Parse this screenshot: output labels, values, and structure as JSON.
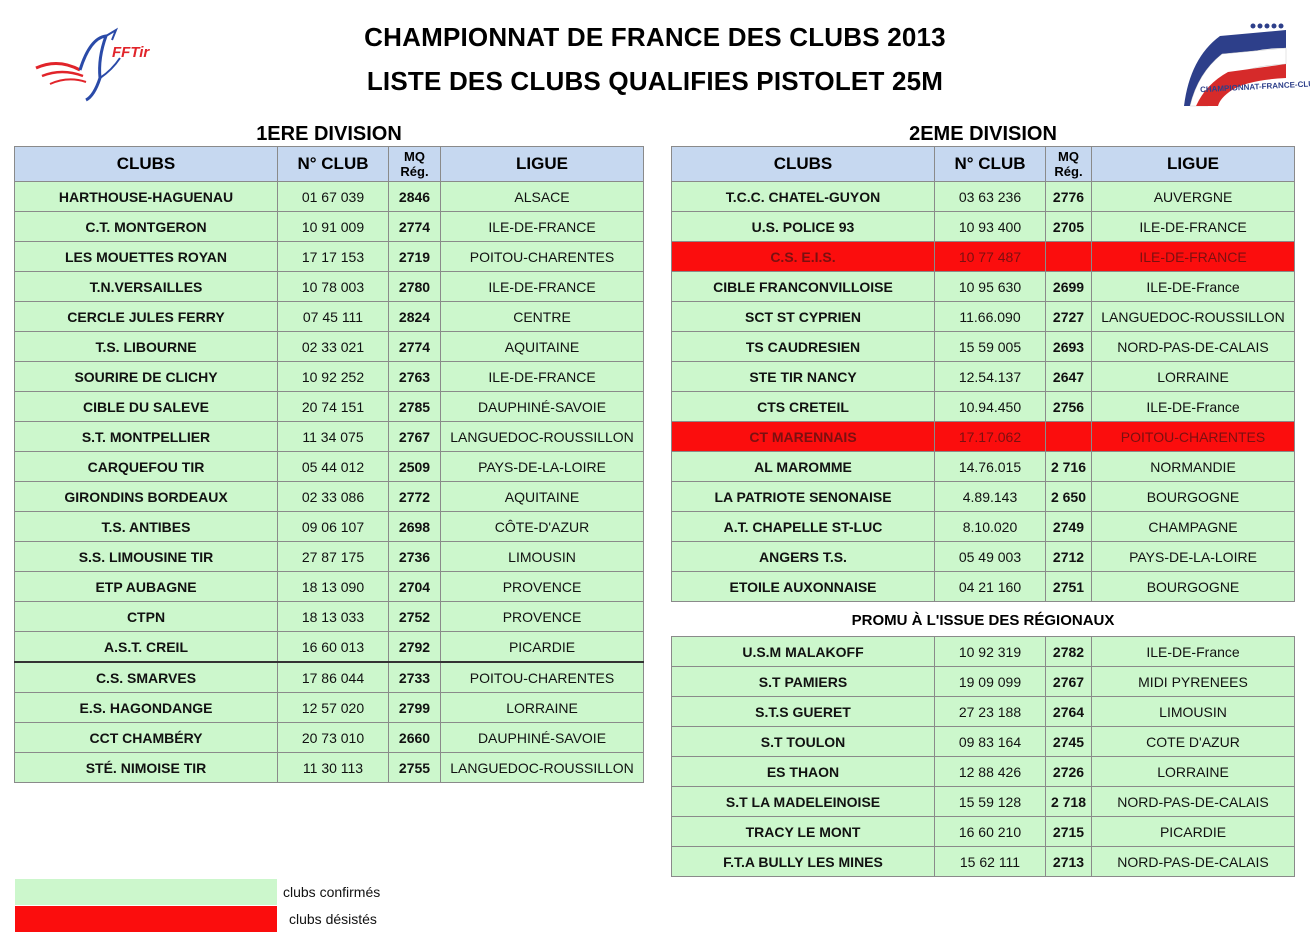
{
  "header": {
    "title_line1": "CHAMPIONNAT DE FRANCE DES CLUBS 2013",
    "title_line2": "LISTE DES CLUBS QUALIFIES PISTOLET 25M",
    "logo_left_text": "FFTir",
    "logo_right_text": "CHAMPIONNAT-FRANCE-CLUBS"
  },
  "columns": {
    "clubs": "CLUBS",
    "num": "N° CLUB",
    "mq_line1": "MQ",
    "mq_line2": "Rég.",
    "ligue": "LIGUE"
  },
  "colors": {
    "confirmed": "#ccf7cc",
    "withdrawn": "#fb0d0d",
    "header": "#c6d8f0"
  },
  "div1": {
    "title": "1ERE DIVISION",
    "rows": [
      {
        "club": "HARTHOUSE-HAGUENAU",
        "num": "01 67 039",
        "mq": "2846",
        "ligue": "ALSACE"
      },
      {
        "club": "C.T. MONTGERON",
        "num": "10 91 009",
        "mq": "2774",
        "ligue": "ILE-DE-FRANCE"
      },
      {
        "club": "LES MOUETTES ROYAN",
        "num": "17 17 153",
        "mq": "2719",
        "ligue": "POITOU-CHARENTES"
      },
      {
        "club": "T.N.VERSAILLES",
        "num": "10 78 003",
        "mq": "2780",
        "ligue": "ILE-DE-FRANCE"
      },
      {
        "club": "CERCLE JULES FERRY",
        "num": "07 45 111",
        "mq": "2824",
        "ligue": "CENTRE"
      },
      {
        "club": "T.S. LIBOURNE",
        "num": "02 33 021",
        "mq": "2774",
        "ligue": "AQUITAINE"
      },
      {
        "club": "SOURIRE DE CLICHY",
        "num": "10 92 252",
        "mq": "2763",
        "ligue": "ILE-DE-FRANCE"
      },
      {
        "club": "CIBLE DU SALEVE",
        "num": "20 74 151",
        "mq": "2785",
        "ligue": "DAUPHINÉ-SAVOIE"
      },
      {
        "club": "S.T. MONTPELLIER",
        "num": "11 34 075",
        "mq": "2767",
        "ligue": "LANGUEDOC-ROUSSILLON"
      },
      {
        "club": "CARQUEFOU TIR",
        "num": "05 44 012",
        "mq": "2509",
        "ligue": "PAYS-DE-LA-LOIRE"
      },
      {
        "club": "GIRONDINS BORDEAUX",
        "num": "02 33 086",
        "mq": "2772",
        "ligue": "AQUITAINE"
      },
      {
        "club": "T.S. ANTIBES",
        "num": "09 06 107",
        "mq": "2698",
        "ligue": "CÔTE-D'AZUR"
      },
      {
        "club": "S.S. LIMOUSINE TIR",
        "num": "27 87 175",
        "mq": "2736",
        "ligue": "LIMOUSIN"
      },
      {
        "club": "ETP AUBAGNE",
        "num": "18 13 090",
        "mq": "2704",
        "ligue": "PROVENCE"
      },
      {
        "club": "CTPN",
        "num": "18 13 033",
        "mq": "2752",
        "ligue": "PROVENCE"
      },
      {
        "club": "A.S.T. CREIL",
        "num": "16 60 013",
        "mq": "2792",
        "ligue": "PICARDIE"
      },
      {
        "club": "C.S. SMARVES",
        "num": "17 86 044",
        "mq": "2733",
        "ligue": "POITOU-CHARENTES"
      },
      {
        "club": "E.S. HAGONDANGE",
        "num": "12 57 020",
        "mq": "2799",
        "ligue": "LORRAINE"
      },
      {
        "club": "CCT CHAMBÉRY",
        "num": "20 73 010",
        "mq": "2660",
        "ligue": "DAUPHINÉ-SAVOIE"
      },
      {
        "club": "STÉ. NIMOISE TIR",
        "num": "11 30 113",
        "mq": "2755",
        "ligue": "LANGUEDOC-ROUSSILLON"
      }
    ]
  },
  "div2": {
    "title": "2EME DIVISION",
    "rows": [
      {
        "club": "T.C.C. CHATEL-GUYON",
        "num": "03 63 236",
        "mq": "2776",
        "ligue": "AUVERGNE",
        "status": "confirmed"
      },
      {
        "club": "U.S. POLICE 93",
        "num": "10 93 400",
        "mq": "2705",
        "ligue": "ILE-DE-FRANCE",
        "status": "confirmed"
      },
      {
        "club": "C.S. E.I.S.",
        "num": "10 77 487",
        "mq": "",
        "ligue": "ILE-DE-FRANCE",
        "status": "withdrawn"
      },
      {
        "club": "CIBLE FRANCONVILLOISE",
        "num": "10 95 630",
        "mq": "2699",
        "ligue": "ILE-DE-France",
        "status": "confirmed"
      },
      {
        "club": "SCT ST CYPRIEN",
        "num": "11.66.090",
        "mq": "2727",
        "ligue": "LANGUEDOC-ROUSSILLON",
        "status": "confirmed"
      },
      {
        "club": "TS CAUDRESIEN",
        "num": "15 59 005",
        "mq": "2693",
        "ligue": "NORD-PAS-DE-CALAIS",
        "status": "confirmed"
      },
      {
        "club": "STE TIR NANCY",
        "num": "12.54.137",
        "mq": "2647",
        "ligue": "LORRAINE",
        "status": "confirmed"
      },
      {
        "club": "CTS CRETEIL",
        "num": "10.94.450",
        "mq": "2756",
        "ligue": "ILE-DE-France",
        "status": "confirmed"
      },
      {
        "club": "CT MARENNAIS",
        "num": "17.17.062",
        "mq": "",
        "ligue": "POITOU-CHARENTES",
        "status": "withdrawn"
      },
      {
        "club": "AL MAROMME",
        "num": "14.76.015",
        "mq": "2 716",
        "ligue": "NORMANDIE",
        "status": "confirmed"
      },
      {
        "club": "LA PATRIOTE SENONAISE",
        "num": "4.89.143",
        "mq": "2 650",
        "ligue": "BOURGOGNE",
        "status": "confirmed"
      },
      {
        "club": "A.T. CHAPELLE ST-LUC",
        "num": "8.10.020",
        "mq": "2749",
        "ligue": "CHAMPAGNE",
        "status": "confirmed"
      },
      {
        "club": "ANGERS T.S.",
        "num": "05 49 003",
        "mq": "2712",
        "ligue": "PAYS-DE-LA-LOIRE",
        "status": "confirmed"
      },
      {
        "club": "ETOILE AUXONNAISE",
        "num": "04 21 160",
        "mq": "2751",
        "ligue": "BOURGOGNE",
        "status": "confirmed"
      }
    ],
    "promo_title": "PROMU À L'ISSUE DES RÉGIONAUX",
    "promo_rows": [
      {
        "club": "U.S.M MALAKOFF",
        "num": "10 92 319",
        "mq": "2782",
        "ligue": "ILE-DE-France"
      },
      {
        "club": "S.T PAMIERS",
        "num": "19 09 099",
        "mq": "2767",
        "ligue": "MIDI PYRENEES"
      },
      {
        "club": "S.T.S GUERET",
        "num": "27 23 188",
        "mq": "2764",
        "ligue": "LIMOUSIN"
      },
      {
        "club": "S.T TOULON",
        "num": "09 83 164",
        "mq": "2745",
        "ligue": "COTE D'AZUR"
      },
      {
        "club": "ES THAON",
        "num": "12 88 426",
        "mq": "2726",
        "ligue": "LORRAINE"
      },
      {
        "club": "S.T LA MADELEINOISE",
        "num": "15 59 128",
        "mq": "2 718",
        "ligue": "NORD-PAS-DE-CALAIS"
      },
      {
        "club": "TRACY LE MONT",
        "num": "16 60 210",
        "mq": "2715",
        "ligue": "PICARDIE"
      },
      {
        "club": "F.T.A BULLY LES MINES",
        "num": "15 62 111",
        "mq": "2713",
        "ligue": "NORD-PAS-DE-CALAIS"
      }
    ]
  },
  "legend": {
    "confirmed_label": "clubs confirmés",
    "withdrawn_label": "clubs désistés"
  }
}
